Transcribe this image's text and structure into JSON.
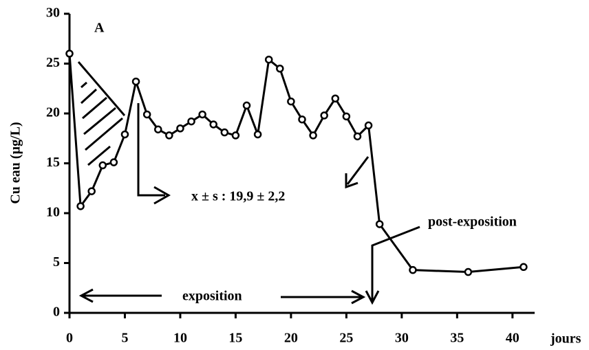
{
  "chart_data": {
    "type": "line",
    "panel_label": "A",
    "y_label": "Cu eau (µg/L)",
    "x_label": "jours",
    "x": [
      0,
      1,
      2,
      3,
      4,
      5,
      6,
      7,
      8,
      9,
      10,
      11,
      12,
      13,
      14,
      15,
      16,
      17,
      18,
      19,
      20,
      21,
      22,
      23,
      24,
      25,
      26,
      27,
      28,
      31,
      36,
      41
    ],
    "series": [
      {
        "color": "#000000",
        "values": [
          26,
          10.7,
          12.2,
          14.8,
          15.1,
          17.9,
          23.2,
          19.9,
          18.4,
          17.8,
          18.5,
          19.2,
          19.9,
          18.9,
          18.1,
          17.8,
          20.8,
          17.9,
          25.4,
          24.5,
          21.2,
          19.4,
          17.8,
          19.8,
          21.5,
          19.7,
          17.7,
          18.8,
          8.9,
          4.3,
          4.1,
          4.6
        ]
      }
    ],
    "xlim": [
      0,
      42
    ],
    "ylim": [
      0,
      30
    ],
    "xticks": [
      0,
      5,
      10,
      15,
      20,
      25,
      30,
      35,
      40
    ],
    "yticks": [
      0,
      5,
      10,
      15,
      20,
      25,
      30
    ],
    "annotations": [
      "x ± s : 19,9 ± 2,2",
      "post-exposition",
      "exposition"
    ]
  }
}
